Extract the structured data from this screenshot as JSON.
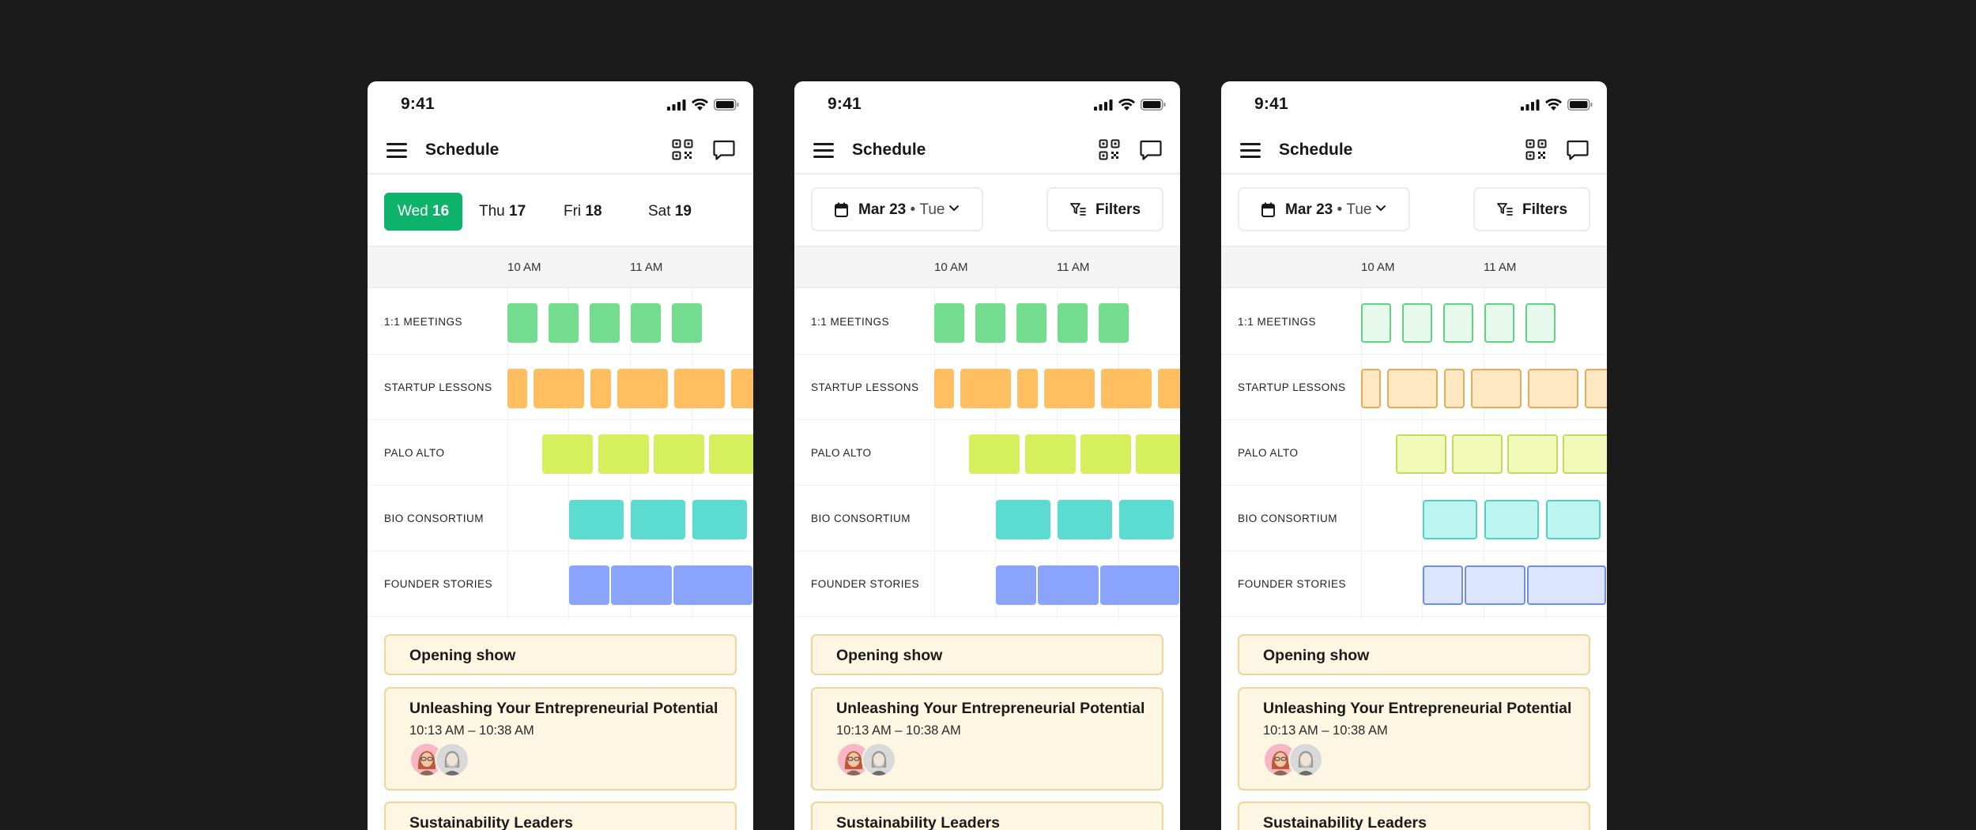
{
  "status_time": "9:41",
  "app_title": "Schedule",
  "day_tabs": [
    {
      "day": "Wed",
      "date": "16",
      "selected": true
    },
    {
      "day": "Thu",
      "date": "17",
      "selected": false
    },
    {
      "day": "Fri",
      "date": "18",
      "selected": false
    },
    {
      "day": "Sat",
      "date": "19",
      "selected": false
    }
  ],
  "date_picker": {
    "date": "Mar 23",
    "separator": "•",
    "weekday": "Tue"
  },
  "filters_label": "Filters",
  "time_labels": [
    "10 AM",
    "11 AM"
  ],
  "tracks": [
    {
      "label": "1:1 MEETINGS",
      "color": "#74dc8f"
    },
    {
      "label": "STARTUP LESSONS",
      "color": "#ffbe60"
    },
    {
      "label": "PALO ALTO",
      "color": "#d6ef5c"
    },
    {
      "label": "BIO CONSORTIUM",
      "color": "#5cdbd0"
    },
    {
      "label": "FOUNDER STORIES",
      "color": "#8aa4fb"
    }
  ],
  "outlined_track_colors": [
    {
      "fill": "#e7f8ec",
      "border": "#5fd084"
    },
    {
      "fill": "#ffe8c2",
      "border": "#eba954"
    },
    {
      "fill": "#f1fab8",
      "border": "#c2de4c"
    },
    {
      "fill": "#bcf5ef",
      "border": "#4fd1c5"
    },
    {
      "fill": "#dbe5ff",
      "border": "#6f8de9"
    }
  ],
  "sessions": [
    {
      "title": "Opening show"
    },
    {
      "title": "Unleashing Your Entrepreneurial Potential",
      "time": "10:13 AM – 10:38 AM"
    },
    {
      "title": "Sustainability Leaders"
    }
  ],
  "icons": [
    "menu-icon",
    "qr-code-icon",
    "chat-icon",
    "signal-icon",
    "wifi-icon",
    "battery-icon",
    "calendar-icon",
    "chevron-down-icon",
    "filter-icon"
  ],
  "accent_color": "#0db26b",
  "card_color": "#fdf6e3"
}
